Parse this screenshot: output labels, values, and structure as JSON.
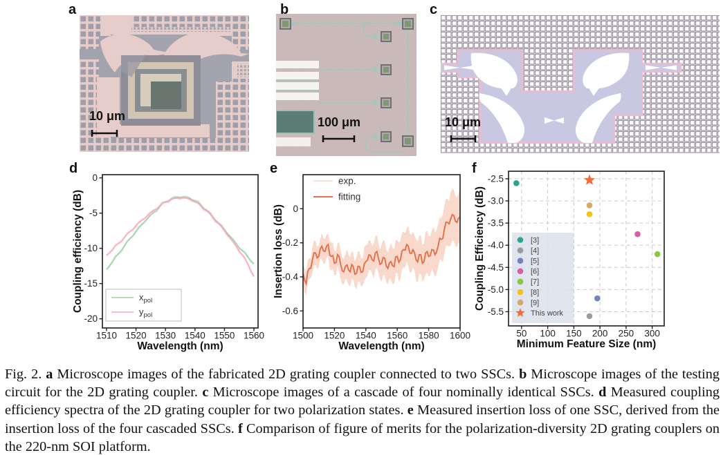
{
  "figure": {
    "panel_labels": {
      "a": "a",
      "b": "b",
      "c": "c",
      "d": "d",
      "e": "e",
      "f": "f"
    },
    "scale_bars": {
      "a": "10 μm",
      "b": "100 μm",
      "c": "10 μm"
    }
  },
  "chart_data": [
    {
      "id": "d",
      "type": "line",
      "xlabel": "Wavelength (nm)",
      "ylabel": "Coupling efficiency (dB)",
      "xlim": [
        1508.6,
        1561.4
      ],
      "ylim": [
        -21.3,
        0.45
      ],
      "xticks": [
        1510,
        1520,
        1530,
        1540,
        1550,
        1560
      ],
      "xtick_labels": [
        "1510",
        "1520",
        "1530",
        "1540",
        "1550",
        "1560"
      ],
      "yticks": [
        0,
        -5,
        -10,
        -15,
        -20
      ],
      "ytick_labels": [
        "0",
        "-5",
        "-10",
        "-15",
        "-20"
      ],
      "grid": false,
      "series": [
        {
          "name": "x_pol",
          "color": "#9fcfa5",
          "x0": 1510,
          "dx": 2,
          "y": [
            -13.0,
            -11.9,
            -10.8,
            -9.7,
            -8.6,
            -7.6,
            -6.6,
            -5.7,
            -4.9,
            -4.1,
            -3.4,
            -2.95,
            -2.72,
            -2.7,
            -2.85,
            -3.25,
            -3.85,
            -4.6,
            -5.5,
            -6.4,
            -7.35,
            -8.35,
            -9.35,
            -10.3,
            -11.25,
            -12.2
          ]
        },
        {
          "name": "y_pol",
          "color": "#f7a9bc",
          "x0": 1510,
          "dx": 2,
          "y": [
            -11.0,
            -10.2,
            -9.3,
            -8.5,
            -7.6,
            -6.8,
            -6.0,
            -5.3,
            -4.6,
            -4.0,
            -3.45,
            -3.05,
            -2.9,
            -2.85,
            -3.0,
            -3.4,
            -4.0,
            -4.7,
            -5.6,
            -6.5,
            -7.5,
            -8.6,
            -9.7,
            -10.9,
            -12.3,
            -14.0
          ]
        }
      ],
      "legend": {
        "box": true,
        "items": [
          {
            "main": "x",
            "sub": "pol",
            "color": "#9fcfa5",
            "type": "line"
          },
          {
            "main": "y",
            "sub": "pol",
            "color": "#f7a9bc",
            "type": "line"
          }
        ]
      }
    },
    {
      "id": "e",
      "type": "line",
      "xlabel": "Wavelength (nm)",
      "ylabel": "Insertion loss (dB)",
      "xlim": [
        1500,
        1600
      ],
      "ylim": [
        -0.7,
        0.2
      ],
      "xticks": [
        1500,
        1520,
        1540,
        1560,
        1580,
        1600
      ],
      "xtick_labels": [
        "1500",
        "1520",
        "1540",
        "1560",
        "1580",
        "1600"
      ],
      "yticks": [
        0,
        -0.2,
        -0.4,
        -0.6
      ],
      "ytick_labels": [
        "0",
        "-0.2",
        "-0.4",
        "-0.6"
      ],
      "grid": false,
      "band": {
        "name": "exp.",
        "color": "#f7d5c6"
      },
      "series": [
        {
          "name": "fitting",
          "color": "#e2714a",
          "x0": 1500,
          "dx": 2,
          "y": [
            -0.38,
            -0.44,
            -0.35,
            -0.3,
            -0.26,
            -0.28,
            -0.22,
            -0.25,
            -0.21,
            -0.28,
            -0.32,
            -0.27,
            -0.33,
            -0.37,
            -0.33,
            -0.37,
            -0.34,
            -0.38,
            -0.34,
            -0.37,
            -0.31,
            -0.27,
            -0.3,
            -0.26,
            -0.29,
            -0.32,
            -0.29,
            -0.35,
            -0.31,
            -0.34,
            -0.28,
            -0.3,
            -0.24,
            -0.21,
            -0.26,
            -0.24,
            -0.3,
            -0.27,
            -0.32,
            -0.26,
            -0.28,
            -0.24,
            -0.27,
            -0.22,
            -0.18,
            -0.12,
            -0.08,
            -0.06,
            -0.04,
            -0.08,
            -0.05
          ]
        }
      ],
      "legend": {
        "box": false,
        "items": [
          {
            "main": "exp.",
            "color": "#f7d5c6",
            "type": "line"
          },
          {
            "main": "fitting",
            "color": "#e2714a",
            "type": "line"
          }
        ]
      }
    },
    {
      "id": "f",
      "type": "scatter",
      "xlabel": "Minimum Feature Size (nm)",
      "ylabel": "Coupling Efficiency (dB)",
      "xlim": [
        25,
        323
      ],
      "ylim": [
        -5.82,
        -2.33
      ],
      "xticks": [
        50,
        100,
        150,
        200,
        250,
        300
      ],
      "xtick_labels": [
        "50",
        "100",
        "150",
        "200",
        "250",
        "300"
      ],
      "yticks": [
        -2.5,
        -3.0,
        -3.5,
        -4.0,
        -4.5,
        -5.0,
        -5.5
      ],
      "ytick_labels": [
        "-2.5",
        "-3.0",
        "-3.5",
        "-4.0",
        "-4.5",
        "-5.0",
        "-5.5"
      ],
      "grid": true,
      "points": [
        {
          "label": "[3]",
          "color": "#2ca58f",
          "x": 40,
          "y": -2.6,
          "marker": "circle"
        },
        {
          "label": "[4]",
          "color": "#9b9b9b",
          "x": 180,
          "y": -5.6,
          "marker": "circle"
        },
        {
          "label": "[5]",
          "color": "#6f86b8",
          "x": 195,
          "y": -5.2,
          "marker": "circle"
        },
        {
          "label": "[6]",
          "color": "#d45fa4",
          "x": 272,
          "y": -3.75,
          "marker": "circle"
        },
        {
          "label": "[7]",
          "color": "#8dc63f",
          "x": 310,
          "y": -4.2,
          "marker": "circle"
        },
        {
          "label": "[8]",
          "color": "#f2c318",
          "x": 180,
          "y": -3.3,
          "marker": "circle"
        },
        {
          "label": "[9]",
          "color": "#d4a96a",
          "x": 180,
          "y": -3.1,
          "marker": "circle"
        },
        {
          "label": "This work",
          "color": "#f26c3a",
          "x": 180,
          "y": -2.53,
          "marker": "star"
        }
      ],
      "legend_bg": "#dce1ea"
    }
  ],
  "caption": {
    "segments": [
      {
        "t": "Fig. 2. ",
        "b": false
      },
      {
        "t": "a",
        "b": true
      },
      {
        "t": " Microscope images of the fabricated 2D grating coupler connected to two SSCs. ",
        "b": false
      },
      {
        "t": "b",
        "b": true
      },
      {
        "t": " Microscope images of the testing circuit for the 2D grating coupler. ",
        "b": false
      },
      {
        "t": "c",
        "b": true
      },
      {
        "t": " Microscope images of a cascade of four nominally identical SSCs. ",
        "b": false
      },
      {
        "t": "d",
        "b": true
      },
      {
        "t": " Measured coupling efficiency spectra of the 2D grating coupler for two polarization states. ",
        "b": false
      },
      {
        "t": "e",
        "b": true
      },
      {
        "t": " Measured insertion loss of one SSC, derived from the insertion loss of the four cascaded SSCs. ",
        "b": false
      },
      {
        "t": "f",
        "b": true
      },
      {
        "t": " Comparison of figure of merits for the polarization-diversity 2D grating couplers on the 220-nm SOI platform.",
        "b": false
      }
    ]
  }
}
